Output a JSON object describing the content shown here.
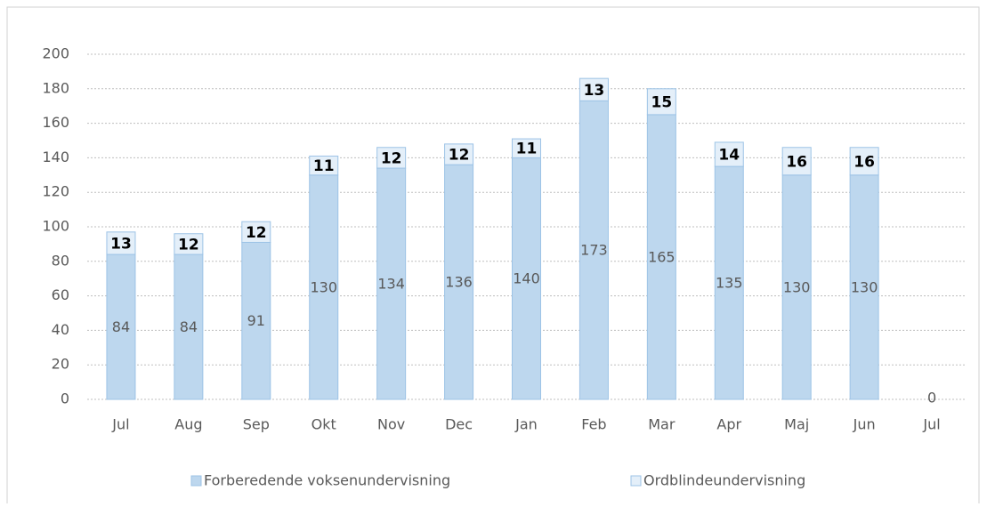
{
  "chart_data": {
    "type": "stacked_bar",
    "categories": [
      "Jul",
      "Aug",
      "Sep",
      "Okt",
      "Nov",
      "Dec",
      "Jan",
      "Feb",
      "Mar",
      "Apr",
      "Maj",
      "Jun",
      "Jul"
    ],
    "series": [
      {
        "name": "Forberedende voksenundervisning",
        "color": "#bdd7ee",
        "values": [
          84,
          84,
          91,
          130,
          134,
          136,
          140,
          173,
          165,
          135,
          130,
          130,
          0
        ]
      },
      {
        "name": "Ordblindeundervisning",
        "color": "#e4eff9",
        "values": [
          13,
          12,
          12,
          11,
          12,
          12,
          11,
          13,
          15,
          14,
          16,
          16,
          null
        ]
      }
    ],
    "ylim": [
      0,
      200
    ],
    "yticks": [
      0,
      20,
      40,
      60,
      80,
      100,
      120,
      140,
      160,
      180,
      200
    ],
    "grid": true,
    "legend": "bottom"
  }
}
